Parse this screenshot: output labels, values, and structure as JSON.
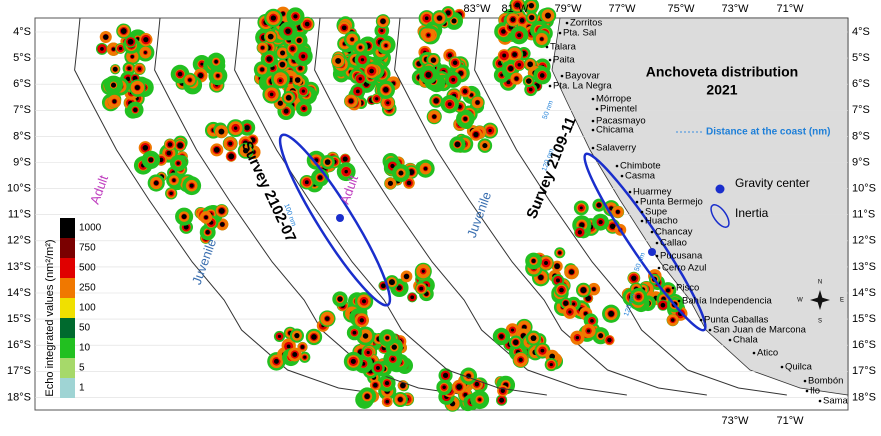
{
  "title": "Anchoveta distribution",
  "year": "2021",
  "lat_labels": [
    "4°S",
    "5°S",
    "6°S",
    "7°S",
    "8°S",
    "9°S",
    "10°S",
    "11°S",
    "12°S",
    "13°S",
    "14°S",
    "15°S",
    "16°S",
    "17°S",
    "18°S"
  ],
  "lon_labels_top": [
    "83°W",
    "81°W",
    "79°W",
    "77°W",
    "75°W",
    "73°W",
    "71°W"
  ],
  "lon_labels_bottom": [
    "73°W",
    "71°W"
  ],
  "places": [
    "Zorritos",
    "Pta. Sal",
    "Talara",
    "Paita",
    "Bayovar",
    "Pta. La Negra",
    "Mórrope",
    "Pimentel",
    "Pacasmayo",
    "Chicama",
    "Salaverry",
    "Chimbote",
    "Casma",
    "Huarmey",
    "Punta Bermejo",
    "Supe",
    "Huacho",
    "Chancay",
    "Callao",
    "Pucusana",
    "Cerro Azul",
    "Pisco",
    "Bahía Independencia",
    "Punta Caballas",
    "San Juan de Marcona",
    "Chala",
    "Atico",
    "Quilca",
    "Bombón",
    "Ilo",
    "Sama"
  ],
  "annotations": [
    "Adult",
    "Juvenile",
    "Survey 2102-07",
    "Adult",
    "Juvenile",
    "Survey 2109-11",
    "100 nm",
    "50 nm",
    "120 nm",
    "50 nm",
    "120 nm"
  ],
  "key": {
    "distance": "Distance at the coast (nm)",
    "gravity": "Gravity center",
    "inertia": "Inertia"
  },
  "legend": {
    "title": "Echo integrated values (nm²/m²)",
    "labels": [
      "1000",
      "750",
      "500",
      "250",
      "100",
      "50",
      "10",
      "5",
      "1"
    ]
  },
  "compass": [
    "N",
    "E",
    "S",
    "W"
  ]
}
